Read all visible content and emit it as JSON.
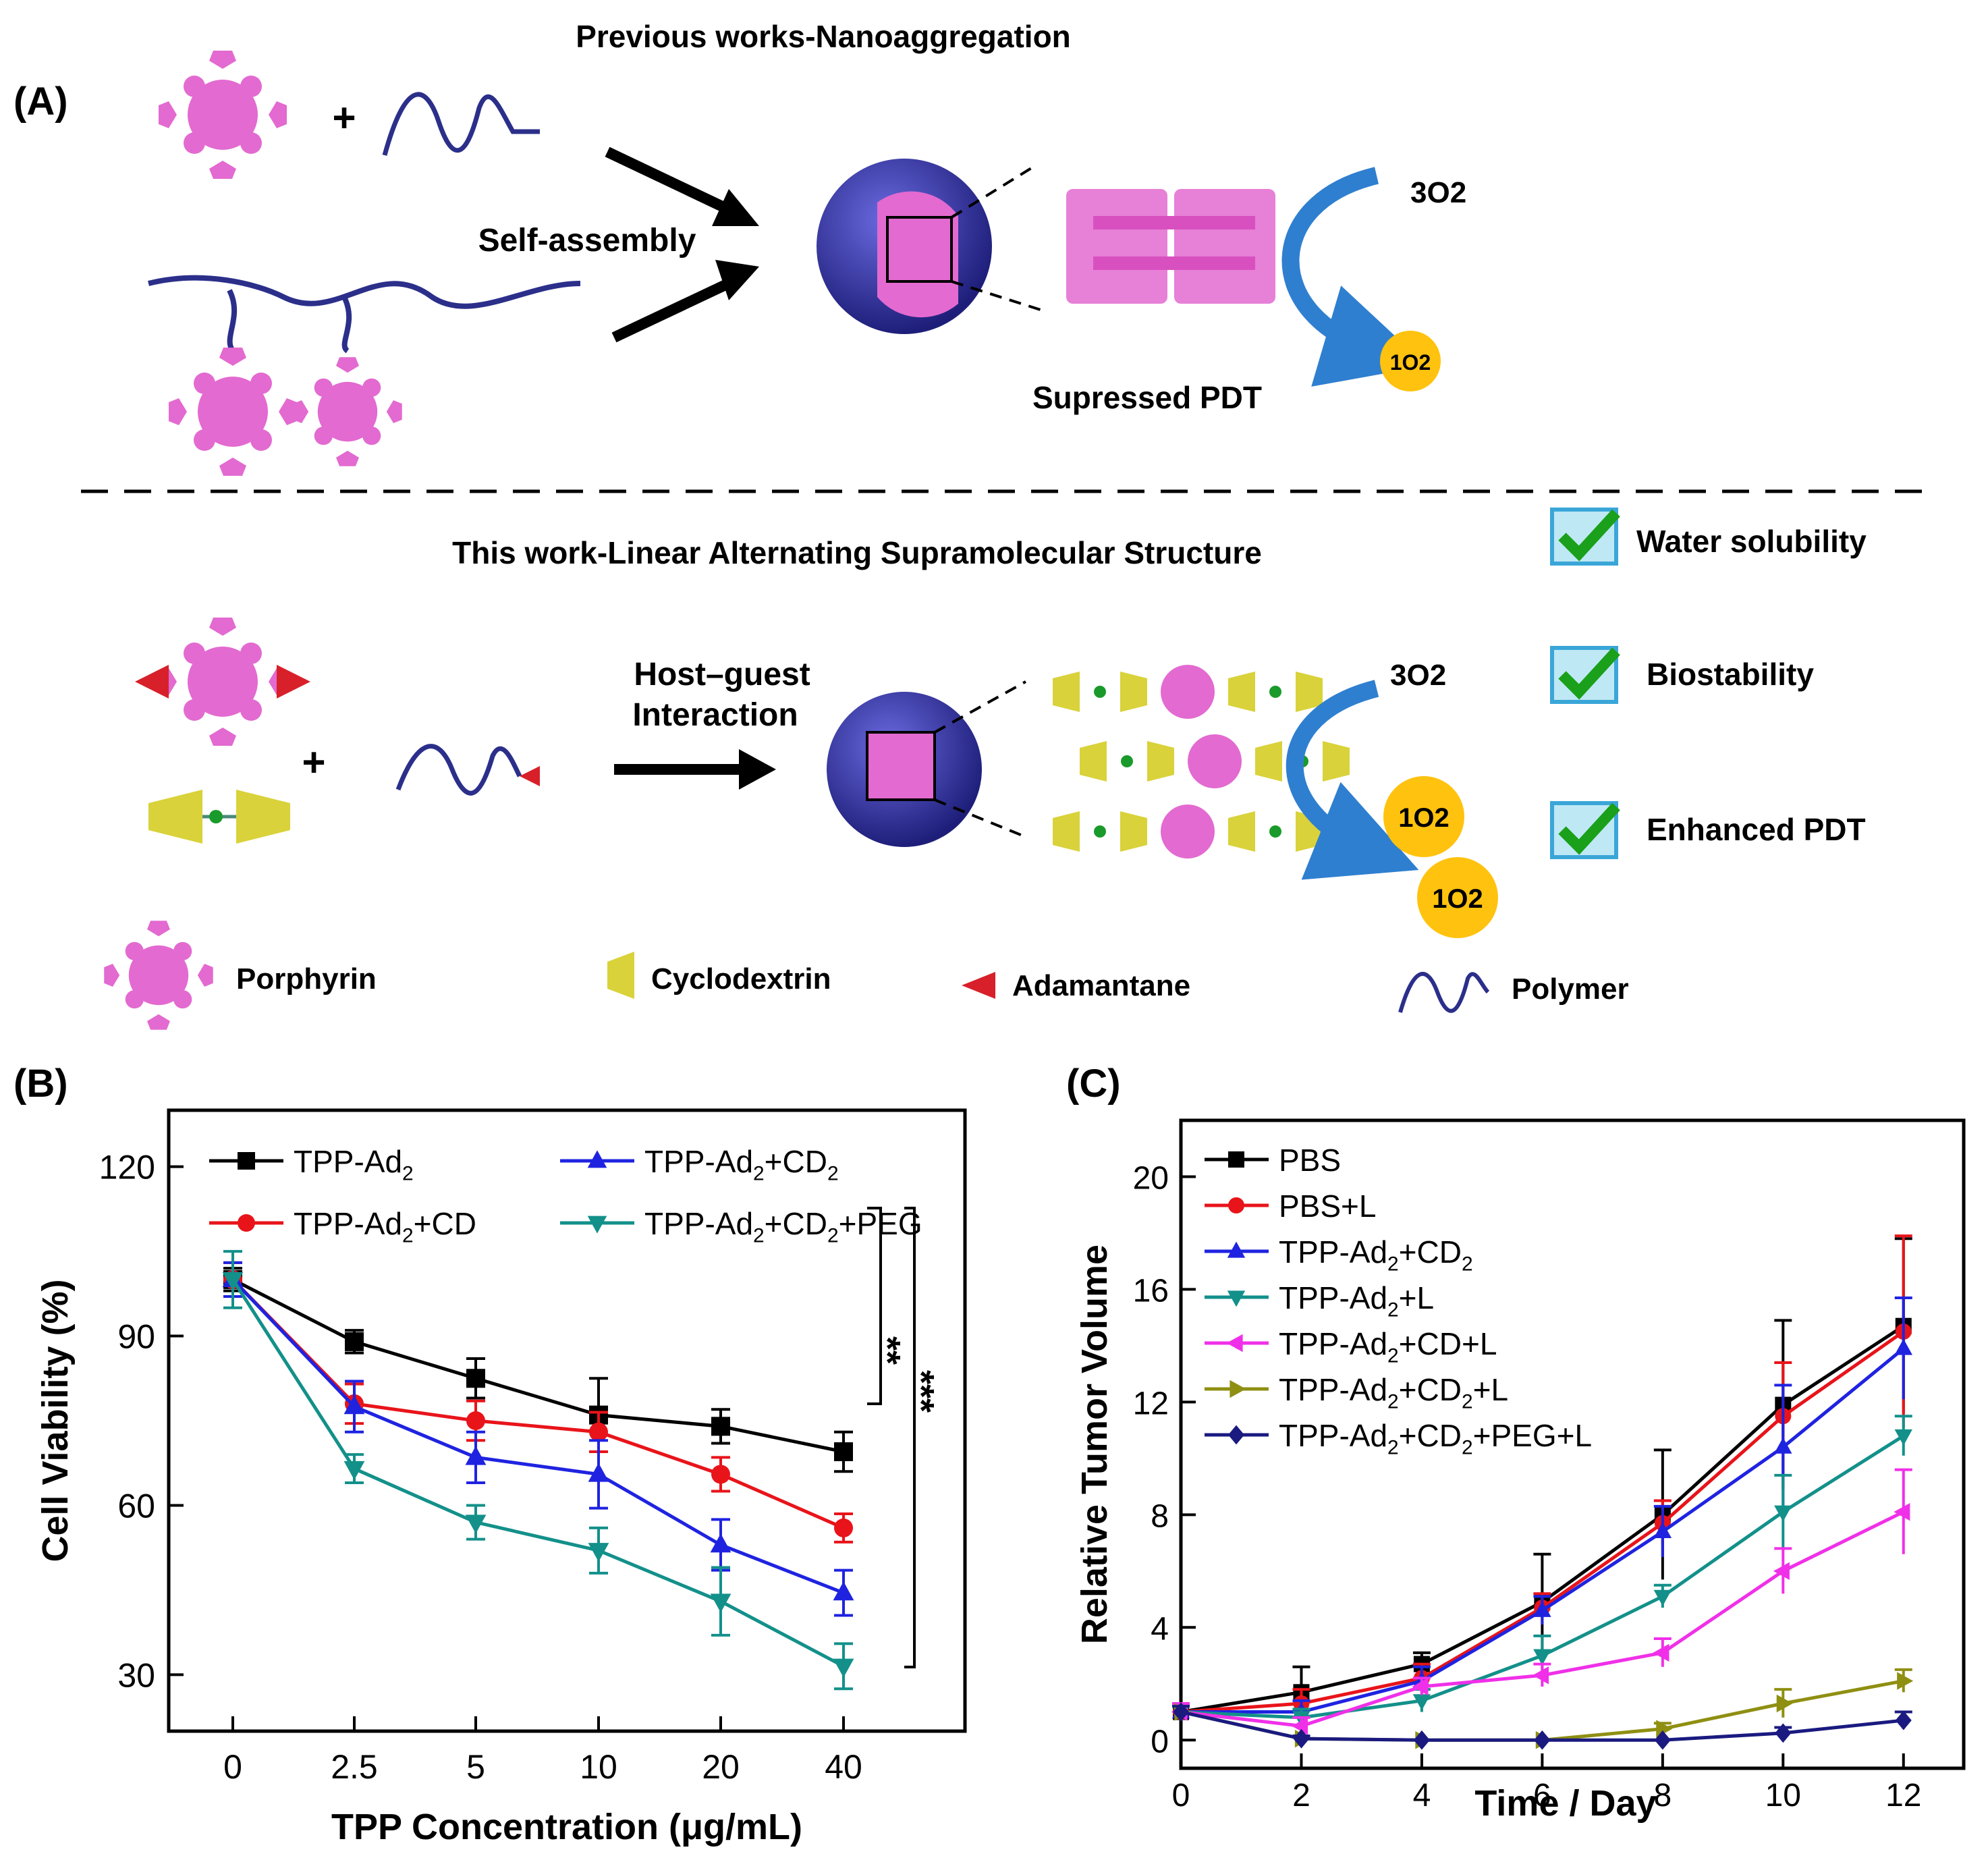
{
  "panel_a": {
    "label": "(A)",
    "top_title": "Previous works-Nanoaggregation",
    "self_assembly": "Self-assembly",
    "suppressed": "Supressed PDT",
    "triplet_o2": "3O2",
    "singlet_o2": "1O2",
    "bottom_title": "This work-Linear Alternating Supramolecular Structure",
    "host_guest_1": "Host–guest",
    "host_guest_2": "Interaction",
    "checks": [
      "Water solubility",
      "Biostability",
      "Enhanced PDT"
    ],
    "legend": [
      "Porphyrin",
      "Cyclodextrin",
      "Adamantane",
      "Polymer"
    ],
    "colors": {
      "porphyrin": "#e36ad0",
      "polymer": "#2b2f8a",
      "sphere": "#3a3aa0",
      "cd": "#d9d23a",
      "ad": "#d8202a",
      "arrow": "#2f7fd0",
      "o2": "#ffc20e",
      "check": "#1aa01a"
    }
  },
  "chart_data": [
    {
      "panel": "(B)",
      "type": "line",
      "title": "",
      "xlabel": "TPP Concentration (μg/mL)",
      "ylabel": "Cell Viability (%)",
      "categories": [
        "0",
        "2.5",
        "5",
        "10",
        "20",
        "40"
      ],
      "ylim": [
        20,
        130
      ],
      "yticks": [
        "30",
        "60",
        "90",
        "120"
      ],
      "legend_placement": "top",
      "series": [
        {
          "name": "TPP-Ad2",
          "color": "#000000",
          "marker": "square",
          "values": [
            100,
            89,
            82.5,
            76,
            74,
            69.5
          ],
          "errors": [
            2,
            2,
            3.5,
            6.5,
            3,
            3.5
          ]
        },
        {
          "name": "TPP-Ad2+CD",
          "color": "#e8141a",
          "marker": "circle",
          "values": [
            100,
            78,
            75,
            73,
            65.5,
            56
          ],
          "errors": [
            3,
            3.5,
            3.5,
            3.5,
            3,
            2.5
          ]
        },
        {
          "name": "TPP-Ad2+CD2",
          "color": "#1f23e0",
          "marker": "triangle-up",
          "values": [
            100,
            77.5,
            68.5,
            65.5,
            53,
            44.5
          ],
          "errors": [
            3,
            4.5,
            4.5,
            6,
            4.5,
            4
          ]
        },
        {
          "name": "TPP-Ad2+CD2+PEG",
          "color": "#13908a",
          "marker": "triangle-down",
          "values": [
            100,
            66.5,
            57,
            52,
            43,
            31.5
          ],
          "errors": [
            5,
            2.5,
            3,
            4,
            6,
            4
          ]
        }
      ],
      "annotations": [
        "**",
        "***"
      ]
    },
    {
      "panel": "(C)",
      "type": "line",
      "title": "",
      "xlabel": "Time / Day",
      "ylabel": "Relative Tumor Volume",
      "x": [
        0,
        2,
        4,
        6,
        8,
        10,
        12
      ],
      "xticks": [
        "0",
        "2",
        "4",
        "6",
        "8",
        "10",
        "12"
      ],
      "ylim": [
        -1,
        22
      ],
      "xlim": [
        0,
        13
      ],
      "yticks": [
        "0",
        "4",
        "8",
        "12",
        "16",
        "20"
      ],
      "legend_placement": "top-left",
      "series": [
        {
          "name": "PBS",
          "color": "#000000",
          "marker": "square",
          "values": [
            1,
            1.7,
            2.7,
            4.9,
            8,
            11.9,
            14.7
          ],
          "errors": [
            0.3,
            0.9,
            0.4,
            1.7,
            2.3,
            3,
            3.1
          ]
        },
        {
          "name": "PBS+L",
          "color": "#e8141a",
          "marker": "circle",
          "values": [
            1,
            1.3,
            2.2,
            4.7,
            7.7,
            11.5,
            14.5
          ],
          "errors": [
            0.3,
            0.5,
            0.5,
            0.5,
            0.8,
            1.9,
            3.4
          ]
        },
        {
          "name": "TPP-Ad2+CD2",
          "color": "#1f23e0",
          "marker": "triangle-up",
          "values": [
            1,
            1,
            2.1,
            4.6,
            7.4,
            10.4,
            13.9
          ],
          "errors": [
            0.3,
            0.4,
            0.5,
            0.5,
            0.9,
            2.2,
            1.8
          ]
        },
        {
          "name": "TPP-Ad2+L",
          "color": "#13908a",
          "marker": "triangle-down",
          "values": [
            1,
            0.8,
            1.4,
            3,
            5.1,
            8.1,
            10.8
          ],
          "errors": [
            0.3,
            0.3,
            0.4,
            0.7,
            0.4,
            1.3,
            0.7
          ]
        },
        {
          "name": "TPP-Ad2+CD+L",
          "color": "#f030e8",
          "marker": "triangle-left",
          "values": [
            1,
            0.5,
            1.9,
            2.3,
            3.1,
            6,
            8.1
          ],
          "errors": [
            0.3,
            0.3,
            0.3,
            0.4,
            0.5,
            0.8,
            1.5
          ]
        },
        {
          "name": "TPP-Ad2+CD2+L",
          "color": "#8f8f12",
          "marker": "triangle-right",
          "values": [
            1,
            0.05,
            0,
            0,
            0.4,
            1.3,
            2.1
          ],
          "errors": [
            0.2,
            0.1,
            0,
            0,
            0.2,
            0.5,
            0.4
          ]
        },
        {
          "name": "TPP-Ad2+CD2+PEG+L",
          "color": "#1a1a80",
          "marker": "diamond",
          "values": [
            1,
            0.05,
            0,
            0,
            0,
            0.25,
            0.7
          ],
          "errors": [
            0.2,
            0.1,
            0,
            0,
            0,
            0.2,
            0.3
          ]
        }
      ]
    }
  ]
}
